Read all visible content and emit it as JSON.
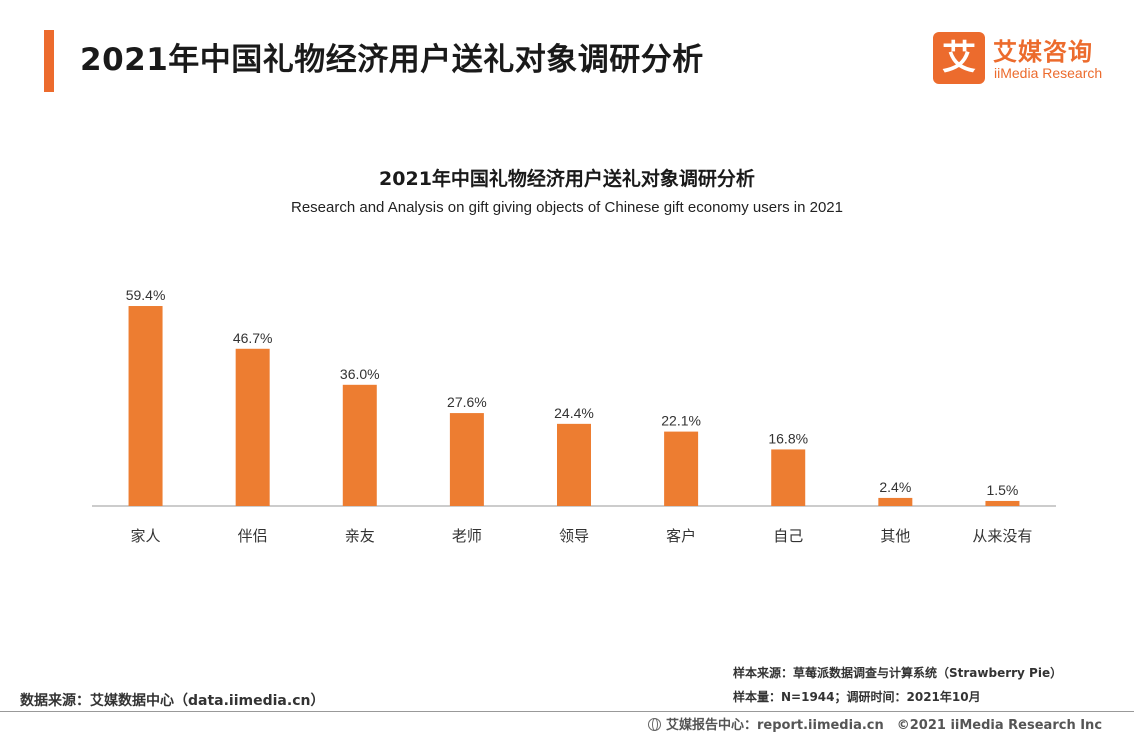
{
  "header": {
    "title": "2021年中国礼物经济用户送礼对象调研分析"
  },
  "logo": {
    "mark": "艾",
    "name_cn": "艾媒咨询",
    "name_en": "iiMedia Research"
  },
  "colors": {
    "accent": "#ec6b2d",
    "bar": "#ed7d31"
  },
  "chart_data": {
    "type": "bar",
    "title": "2021年中国礼物经济用户送礼对象调研分析",
    "subtitle": "Research and Analysis on gift giving objects of Chinese gift economy users in 2021",
    "categories": [
      "家人",
      "伴侣",
      "亲友",
      "老师",
      "领导",
      "客户",
      "自己",
      "其他",
      "从来没有"
    ],
    "values": [
      59.4,
      46.7,
      36.0,
      27.6,
      24.4,
      22.1,
      16.8,
      2.4,
      1.5
    ],
    "data_labels": [
      "59.4%",
      "46.7%",
      "36.0%",
      "27.6%",
      "24.4%",
      "22.1%",
      "16.8%",
      "2.4%",
      "1.5%"
    ],
    "ylim": [
      0,
      60
    ],
    "grid": false,
    "legend": "none"
  },
  "footer": {
    "source": "数据来源：艾媒数据中心（data.iimedia.cn）",
    "sample_source": "样本来源：草莓派数据调查与计算系统（Strawberry Pie）",
    "sample_size": "样本量：N=1944；调研时间：2021年10月",
    "report_center": "艾媒报告中心：report.iimedia.cn　©2021  iiMedia Research  Inc"
  }
}
